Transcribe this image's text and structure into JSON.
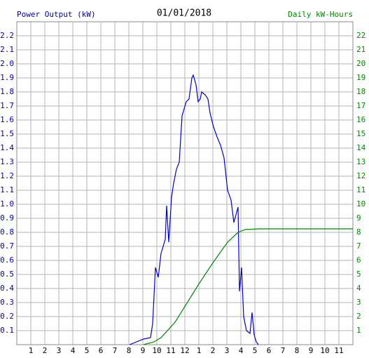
{
  "chart_data": {
    "type": "line",
    "title": "01/01/2018",
    "y_label": "Power Output (kW)",
    "y2_label": "Daily kW-Hours",
    "xlim": [
      0,
      24
    ],
    "xticks": [
      1,
      2,
      3,
      4,
      5,
      6,
      7,
      8,
      9,
      10,
      11,
      12,
      {
        "value": 13,
        "label": "1"
      },
      {
        "value": 14,
        "label": "2"
      },
      {
        "value": 15,
        "label": "3"
      },
      {
        "value": 16,
        "label": "4"
      },
      {
        "value": 17,
        "label": "5"
      },
      {
        "value": 18,
        "label": "6"
      },
      {
        "value": 19,
        "label": "7"
      },
      {
        "value": 20,
        "label": "8"
      },
      {
        "value": 21,
        "label": "9"
      },
      {
        "value": 22,
        "label": "10"
      },
      {
        "value": 23,
        "label": "11"
      }
    ],
    "ylim": [
      0,
      2.3
    ],
    "yticks": [
      0.1,
      0.2,
      0.3,
      0.4,
      0.5,
      0.6,
      0.7,
      0.8,
      0.9,
      {
        "value": 1,
        "label": "1.0"
      },
      1.1,
      1.2,
      1.3,
      1.4,
      1.5,
      1.6,
      1.7,
      1.8,
      1.9,
      {
        "value": 2,
        "label": "2.0"
      },
      2.1,
      2.2
    ],
    "y2lim": [
      0,
      23
    ],
    "y2ticks": [
      1,
      2,
      3,
      4,
      5,
      6,
      7,
      8,
      9,
      10,
      11,
      12,
      13,
      14,
      15,
      16,
      17,
      18,
      19,
      20,
      21,
      22
    ],
    "grid": true,
    "series": [
      {
        "color": "#0000cc",
        "x": [
          8.05,
          9.05,
          9.55,
          9.7,
          9.9,
          10.1,
          10.3,
          10.6,
          10.7,
          10.85,
          11.05,
          11.2,
          11.4,
          11.6,
          11.8,
          12.1,
          12.3,
          12.5,
          12.6,
          12.8,
          12.95,
          13.1,
          13.2,
          13.45,
          13.65,
          13.8,
          14.05,
          14.3,
          14.55,
          14.8,
          15.05,
          15.3,
          15.5,
          15.8,
          15.9,
          16.05,
          16.2,
          16.4,
          16.65,
          16.8,
          16.95,
          17.1,
          17.25
        ],
        "values": [
          0,
          0.04,
          0.05,
          0.15,
          0.55,
          0.48,
          0.65,
          0.75,
          0.99,
          0.73,
          1.05,
          1.15,
          1.25,
          1.3,
          1.63,
          1.73,
          1.75,
          1.9,
          1.92,
          1.85,
          1.73,
          1.75,
          1.8,
          1.78,
          1.75,
          1.65,
          1.55,
          1.48,
          1.42,
          1.33,
          1.1,
          1.03,
          0.87,
          0.98,
          0.38,
          0.55,
          0.2,
          0.1,
          0.08,
          0.23,
          0.07,
          0.02,
          0
        ]
      },
      {
        "color": "#008800",
        "axis": "y2",
        "x": [
          9.05,
          9.8,
          10.3,
          11.3,
          12.05,
          13.05,
          14.05,
          15.05,
          15.8,
          16.3,
          17.3,
          24
        ],
        "values": [
          0,
          0.2,
          0.5,
          1.6,
          2.8,
          4.4,
          5.9,
          7.3,
          8.0,
          8.2,
          8.25,
          8.25
        ]
      }
    ]
  }
}
